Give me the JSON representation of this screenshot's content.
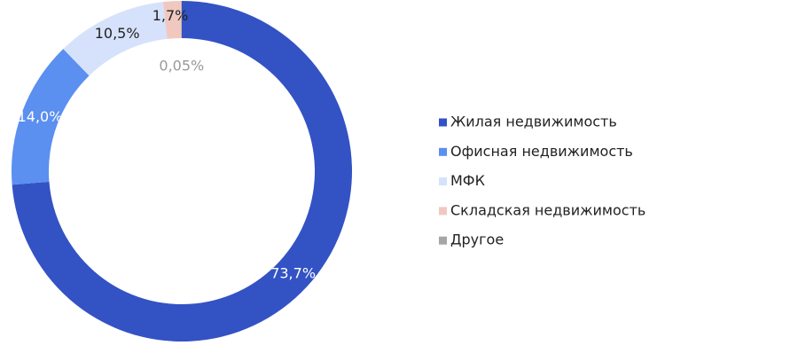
{
  "chart_data": {
    "type": "donut",
    "categories": [
      "Жилая недвижимость",
      "Офисная недвижимость",
      "МФК",
      "Складская недвижимость",
      "Другое"
    ],
    "values": [
      73.7,
      14.0,
      10.5,
      1.7,
      0.05
    ],
    "value_labels": [
      "73,7%",
      "14,0%",
      "10,5%",
      "1,7%",
      "0,05%"
    ],
    "colors": [
      "#3352c4",
      "#5b8ff0",
      "#d6e2fb",
      "#f0c8c0",
      "#a6a6a6"
    ],
    "legend": "right"
  }
}
